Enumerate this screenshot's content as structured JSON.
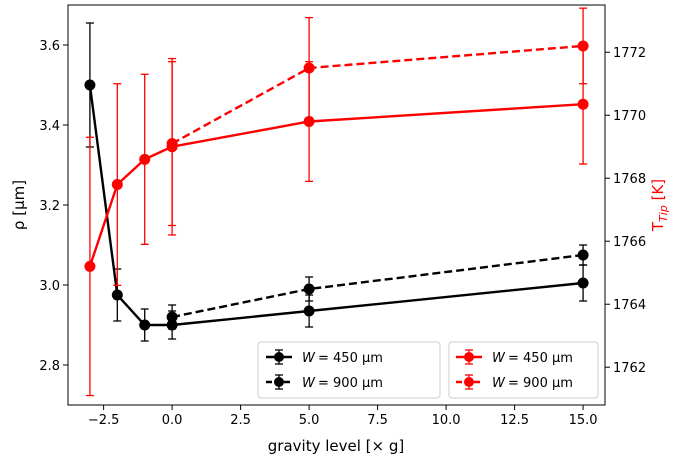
{
  "chart_data": {
    "type": "line",
    "xlabel": "gravity level [× g]",
    "ylabel_left": "ρ [µm]",
    "ylabel_right": "T_Tip [K]",
    "ylabel_right_main": "T",
    "ylabel_right_sub": "Tip",
    "ylabel_right_unit": " [K]",
    "xlim": [
      -3.8,
      15.8
    ],
    "ylim_left": [
      2.7,
      3.7
    ],
    "ylim_right": [
      1760.8,
      1773.5
    ],
    "x_ticks": [
      "−2.5",
      "0.0",
      "2.5",
      "5.0",
      "7.5",
      "10.0",
      "12.5",
      "15.0"
    ],
    "x_tick_values": [
      -2.5,
      0,
      2.5,
      5,
      7.5,
      10,
      12.5,
      15
    ],
    "y_left_ticks": [
      "2.8",
      "3.0",
      "3.2",
      "3.4",
      "3.6"
    ],
    "y_left_tick_values": [
      2.8,
      3.0,
      3.2,
      3.4,
      3.6
    ],
    "y_right_ticks": [
      "1762",
      "1764",
      "1766",
      "1768",
      "1770",
      "1772"
    ],
    "y_right_tick_values": [
      1762,
      1764,
      1766,
      1768,
      1770,
      1772
    ],
    "grid": false,
    "series": [
      {
        "name": "W = 450 µm",
        "legend_label": "= 450 µm",
        "axis": "left",
        "color": "#000000",
        "dash": "solid",
        "x": [
          -3,
          -2,
          -1,
          0,
          5,
          15
        ],
        "y": [
          3.5,
          2.975,
          2.9,
          2.9,
          2.935,
          3.005
        ],
        "err": [
          0.155,
          0.065,
          0.04,
          0.035,
          0.04,
          0.045
        ]
      },
      {
        "name": "W = 900 µm",
        "legend_label": "= 900 µm",
        "axis": "left",
        "color": "#000000",
        "dash": "dashed",
        "x": [
          0,
          5,
          15
        ],
        "y": [
          2.92,
          2.99,
          3.075
        ],
        "err": [
          0.03,
          0.03,
          0.025
        ]
      },
      {
        "name": "W = 450 µm",
        "legend_label": "= 450 µm",
        "axis": "right",
        "color": "#ff0000",
        "dash": "solid",
        "x": [
          -3,
          -2,
          -1,
          0,
          5,
          15
        ],
        "y": [
          1765.2,
          1767.8,
          1768.6,
          1769.0,
          1769.8,
          1770.35
        ],
        "err": [
          4.1,
          3.2,
          2.7,
          2.8,
          1.9,
          1.9
        ]
      },
      {
        "name": "W = 900 µm",
        "legend_label": "= 900 µm",
        "axis": "right",
        "color": "#ff0000",
        "dash": "dashed",
        "x": [
          0,
          5,
          15
        ],
        "y": [
          1769.1,
          1771.5,
          1772.2
        ],
        "err": [
          2.6,
          1.6,
          1.2
        ]
      }
    ],
    "legend_left_placement": "lower-center",
    "legend_right_placement": "lower-right"
  }
}
